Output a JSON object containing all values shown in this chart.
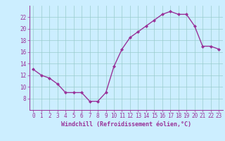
{
  "x": [
    0,
    1,
    2,
    3,
    4,
    5,
    6,
    7,
    8,
    9,
    10,
    11,
    12,
    13,
    14,
    15,
    16,
    17,
    18,
    19,
    20,
    21,
    22,
    23
  ],
  "y": [
    13.0,
    12.0,
    11.5,
    10.5,
    9.0,
    9.0,
    9.0,
    7.5,
    7.5,
    9.0,
    13.5,
    16.5,
    18.5,
    19.5,
    20.5,
    21.5,
    22.5,
    23.0,
    22.5,
    22.5,
    20.5,
    17.0,
    17.0,
    16.5
  ],
  "line_color": "#993399",
  "marker": "D",
  "marker_size": 2,
  "background_color": "#cceeff",
  "grid_color": "#99cccc",
  "xlabel": "Windchill (Refroidissement éolien,°C)",
  "xlabel_color": "#993399",
  "tick_color": "#993399",
  "spine_color": "#993399",
  "ylim": [
    6,
    24
  ],
  "xlim": [
    -0.5,
    23.5
  ],
  "yticks": [
    8,
    10,
    12,
    14,
    16,
    18,
    20,
    22
  ],
  "xticks": [
    0,
    1,
    2,
    3,
    4,
    5,
    6,
    7,
    8,
    9,
    10,
    11,
    12,
    13,
    14,
    15,
    16,
    17,
    18,
    19,
    20,
    21,
    22,
    23
  ],
  "linewidth": 1.0,
  "tick_fontsize": 5.5,
  "xlabel_fontsize": 6.0
}
